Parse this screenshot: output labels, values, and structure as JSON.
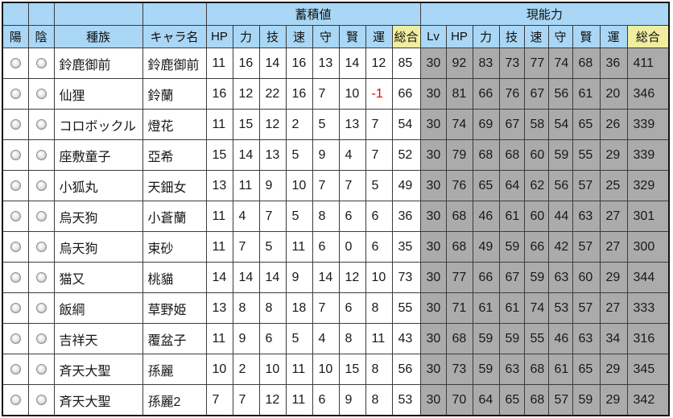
{
  "table": {
    "groups": {
      "accumulated": "蓄積値",
      "current": "現能力"
    },
    "headers": {
      "yang": "陽",
      "yin": "陰",
      "species": "種族",
      "name": "キャラ名",
      "acc": [
        "HP",
        "力",
        "技",
        "速",
        "守",
        "賢",
        "運",
        "総合"
      ],
      "cur": [
        "Lv",
        "HP",
        "力",
        "技",
        "速",
        "守",
        "賢",
        "運",
        "総合"
      ]
    },
    "rows": [
      {
        "species": "鈴鹿御前",
        "name": "鈴鹿御前",
        "acc": [
          11,
          16,
          14,
          16,
          13,
          14,
          12,
          85
        ],
        "cur": [
          30,
          92,
          83,
          73,
          77,
          74,
          68,
          36,
          411
        ]
      },
      {
        "species": "仙狸",
        "name": "鈴蘭",
        "acc": [
          16,
          12,
          22,
          16,
          7,
          10,
          -1,
          66
        ],
        "cur": [
          30,
          81,
          66,
          76,
          67,
          56,
          61,
          20,
          346
        ]
      },
      {
        "species": "コロボックル",
        "name": "燈花",
        "acc": [
          11,
          15,
          12,
          2,
          5,
          13,
          7,
          54
        ],
        "cur": [
          30,
          74,
          69,
          67,
          58,
          54,
          65,
          26,
          339
        ]
      },
      {
        "species": "座敷童子",
        "name": "亞希",
        "acc": [
          15,
          14,
          13,
          5,
          9,
          4,
          7,
          52
        ],
        "cur": [
          30,
          79,
          68,
          68,
          60,
          59,
          55,
          29,
          339
        ]
      },
      {
        "species": "小狐丸",
        "name": "天鈿女",
        "acc": [
          13,
          11,
          9,
          10,
          7,
          7,
          5,
          49
        ],
        "cur": [
          30,
          76,
          65,
          64,
          62,
          56,
          57,
          25,
          329
        ]
      },
      {
        "species": "烏天狗",
        "name": "小蒼蘭",
        "acc": [
          11,
          4,
          7,
          5,
          8,
          6,
          6,
          36
        ],
        "cur": [
          30,
          68,
          46,
          61,
          60,
          44,
          63,
          27,
          301
        ]
      },
      {
        "species": "烏天狗",
        "name": "束砂",
        "acc": [
          11,
          7,
          5,
          11,
          6,
          0,
          6,
          35
        ],
        "cur": [
          30,
          68,
          49,
          59,
          66,
          42,
          57,
          27,
          300
        ]
      },
      {
        "species": "猫又",
        "name": "桃貓",
        "acc": [
          14,
          14,
          14,
          9,
          14,
          12,
          10,
          73
        ],
        "cur": [
          30,
          77,
          66,
          67,
          59,
          63,
          60,
          29,
          344
        ]
      },
      {
        "species": "飯綱",
        "name": "草野姫",
        "acc": [
          13,
          8,
          8,
          18,
          7,
          6,
          8,
          55
        ],
        "cur": [
          30,
          71,
          61,
          61,
          74,
          53,
          57,
          27,
          333
        ]
      },
      {
        "species": "吉祥天",
        "name": "覆盆子",
        "acc": [
          11,
          9,
          6,
          5,
          4,
          8,
          11,
          43
        ],
        "cur": [
          30,
          68,
          59,
          59,
          55,
          46,
          63,
          34,
          316
        ]
      },
      {
        "species": "斉天大聖",
        "name": "孫麗",
        "acc": [
          10,
          2,
          10,
          11,
          10,
          15,
          8,
          56
        ],
        "cur": [
          30,
          73,
          59,
          63,
          68,
          61,
          65,
          29,
          345
        ]
      },
      {
        "species": "斉天大聖",
        "name": "孫麗2",
        "acc": [
          7,
          7,
          12,
          11,
          6,
          9,
          8,
          53
        ],
        "cur": [
          30,
          70,
          64,
          65,
          68,
          57,
          59,
          29,
          342
        ]
      }
    ]
  },
  "colors": {
    "header_blue": "#a9d7f5",
    "total_yellow": "#f0eda0",
    "current_gray": "#ababab",
    "negative_red": "#e00000"
  }
}
